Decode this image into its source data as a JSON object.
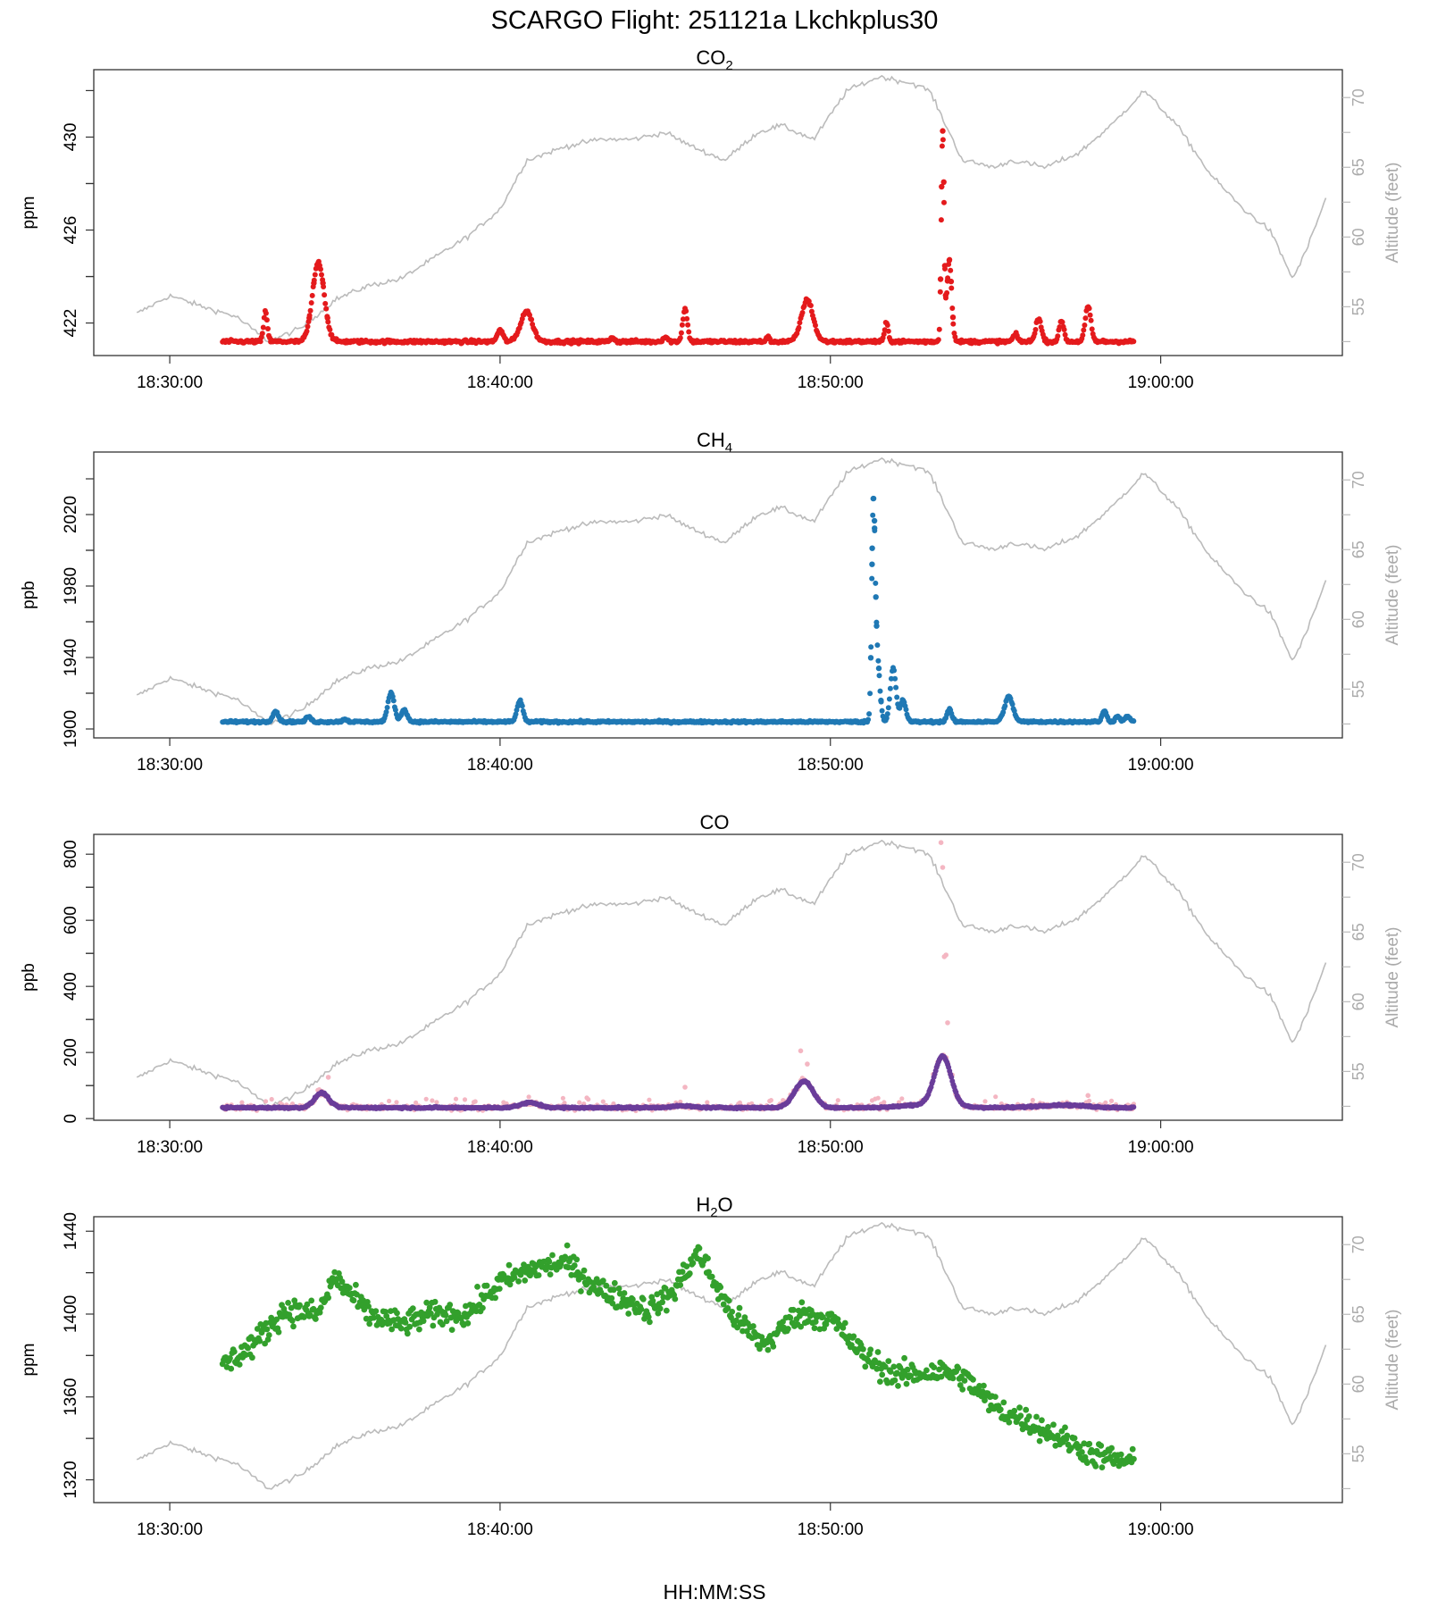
{
  "title": "SCARGO Flight: 251121a  Lkchkplus30",
  "xlabel": "HH:MM:SS",
  "x_ticks": [
    "18:30:00",
    "18:40:00",
    "18:50:00",
    "19:00:00"
  ],
  "right_axis_label": "Altitude (feet)",
  "colors": {
    "co2": "#e41a1c",
    "ch4": "#1f78b4",
    "co": "#6a3d9a",
    "co_raw": "#f4b6c2",
    "h2o": "#33a02c",
    "altitude": "#bbbbbb"
  },
  "panels": [
    {
      "key": "co2",
      "title_main": "CO",
      "title_sub": "2",
      "ylabel": "ppm",
      "yticks": [
        "422",
        "426",
        "430"
      ]
    },
    {
      "key": "ch4",
      "title_main": "CH",
      "title_sub": "4",
      "ylabel": "ppb",
      "yticks": [
        "1900",
        "1940",
        "1980",
        "2020"
      ]
    },
    {
      "key": "co",
      "title_main": "CO",
      "title_sub": "",
      "ylabel": "ppb",
      "yticks": [
        "0",
        "200",
        "400",
        "600",
        "800"
      ]
    },
    {
      "key": "h2o",
      "title_main": "H",
      "title_sub": "2",
      "title_tail": "O",
      "ylabel": "ppm",
      "yticks": [
        "1320",
        "1360",
        "1400",
        "1440"
      ]
    }
  ],
  "alt_ticks": [
    "55",
    "60",
    "65",
    "70"
  ],
  "chart_data": {
    "type": "scatter",
    "x_unit": "minutes after 18:30:00",
    "x_range": [
      -2.3,
      35.5
    ],
    "altitude": {
      "name": "Altitude (feet)",
      "ylim": [
        51.5,
        72.0
      ],
      "x": [
        -1.0,
        0.0,
        1.0,
        2.0,
        3.0,
        4.0,
        5.0,
        6.0,
        7.0,
        8.0,
        9.0,
        10.0,
        10.8,
        12.0,
        13.0,
        14.0,
        15.0,
        15.8,
        16.8,
        17.8,
        18.5,
        19.5,
        20.5,
        21.5,
        22.5,
        23.0,
        24.0,
        25.0,
        25.5,
        26.5,
        27.5,
        28.5,
        29.5,
        30.5,
        31.5,
        32.5,
        33.3,
        34.0,
        34.4,
        34.8,
        35.0
      ],
      "values": [
        54.5,
        55.8,
        55.0,
        54.3,
        52.5,
        53.5,
        55.5,
        56.5,
        57.0,
        58.5,
        60.0,
        62.0,
        65.5,
        66.5,
        67.0,
        67.0,
        67.5,
        66.5,
        65.5,
        67.5,
        68.0,
        67.0,
        70.5,
        71.5,
        71.0,
        70.5,
        65.5,
        65.0,
        65.5,
        65.0,
        66.0,
        68.0,
        70.5,
        68.0,
        64.5,
        62.0,
        60.5,
        57.0,
        59.0,
        61.5,
        62.8
      ]
    },
    "series": [
      {
        "name": "CO2",
        "unit": "ppm",
        "ylim": [
          420.6,
          432.9
        ],
        "baseline": 421.2,
        "noise": 0.07,
        "x_range": [
          1.6,
          29.2
        ],
        "peaks": [
          [
            2.9,
            1.3,
            0.08
          ],
          [
            4.5,
            3.4,
            0.25
          ],
          [
            10.0,
            0.5,
            0.12
          ],
          [
            10.8,
            1.3,
            0.25
          ],
          [
            13.4,
            0.2,
            0.08
          ],
          [
            15.0,
            0.2,
            0.1
          ],
          [
            15.6,
            1.4,
            0.1
          ],
          [
            18.1,
            0.2,
            0.06
          ],
          [
            19.3,
            1.8,
            0.25
          ],
          [
            21.7,
            0.8,
            0.08
          ],
          [
            23.4,
            9.0,
            0.06
          ],
          [
            23.6,
            3.5,
            0.1
          ],
          [
            25.6,
            0.3,
            0.1
          ],
          [
            26.3,
            1.0,
            0.12
          ],
          [
            27.0,
            0.9,
            0.1
          ],
          [
            27.8,
            1.5,
            0.12
          ]
        ]
      },
      {
        "name": "CH4",
        "unit": "ppb",
        "ylim": [
          1895,
          2055
        ],
        "baseline": 1904,
        "noise": 0.6,
        "x_range": [
          1.6,
          29.2
        ],
        "peaks": [
          [
            3.2,
            6.0,
            0.12
          ],
          [
            4.2,
            3.0,
            0.1
          ],
          [
            5.3,
            1.5,
            0.1
          ],
          [
            6.7,
            16.0,
            0.14
          ],
          [
            7.1,
            7.0,
            0.12
          ],
          [
            10.6,
            12.0,
            0.12
          ],
          [
            21.3,
            105.0,
            0.07
          ],
          [
            21.4,
            40.0,
            0.12
          ],
          [
            21.9,
            30.0,
            0.12
          ],
          [
            22.2,
            12.0,
            0.12
          ],
          [
            23.6,
            7.0,
            0.1
          ],
          [
            25.4,
            14.0,
            0.18
          ],
          [
            28.3,
            6.0,
            0.1
          ],
          [
            28.7,
            3.0,
            0.1
          ],
          [
            29.0,
            3.0,
            0.1
          ]
        ]
      },
      {
        "name": "CO",
        "unit": "ppb",
        "ylim": [
          -5,
          860
        ],
        "baseline": 33,
        "noise": 2.5,
        "x_range": [
          1.6,
          29.2
        ],
        "peaks": [
          [
            4.6,
            45.0,
            0.3
          ],
          [
            10.9,
            15.0,
            0.4
          ],
          [
            15.5,
            5.0,
            0.5
          ],
          [
            19.2,
            80.0,
            0.4
          ],
          [
            23.0,
            10.0,
            1.0
          ],
          [
            23.4,
            148.0,
            0.35
          ],
          [
            27.0,
            8.0,
            1.0
          ]
        ],
        "raw_spikes": [
          [
            23.35,
            835
          ],
          [
            23.4,
            760
          ],
          [
            23.45,
            490
          ],
          [
            23.5,
            495
          ],
          [
            23.55,
            290
          ],
          [
            4.8,
            125
          ],
          [
            19.1,
            205
          ],
          [
            19.3,
            165
          ],
          [
            15.6,
            95
          ],
          [
            27.8,
            70
          ]
        ]
      },
      {
        "name": "H2O",
        "unit": "ppm",
        "ylim": [
          1309,
          1447
        ],
        "noise": 6.0,
        "x_range": [
          1.6,
          29.2
        ],
        "trend_x": [
          1.6,
          2.5,
          3.5,
          4.5,
          5.0,
          6.0,
          7.0,
          8.0,
          9.0,
          10.0,
          11.0,
          12.0,
          13.0,
          14.5,
          15.2,
          16.0,
          17.0,
          18.0,
          19.0,
          20.0,
          21.0,
          22.0,
          23.0,
          23.5,
          24.0,
          25.0,
          26.0,
          27.0,
          28.0,
          29.2
        ],
        "trend_y": [
          1375,
          1385,
          1402,
          1400,
          1418,
          1400,
          1395,
          1400,
          1400,
          1415,
          1422,
          1425,
          1412,
          1402,
          1410,
          1430,
          1400,
          1385,
          1400,
          1398,
          1380,
          1370,
          1372,
          1372,
          1370,
          1355,
          1348,
          1340,
          1332,
          1328
        ]
      }
    ]
  }
}
